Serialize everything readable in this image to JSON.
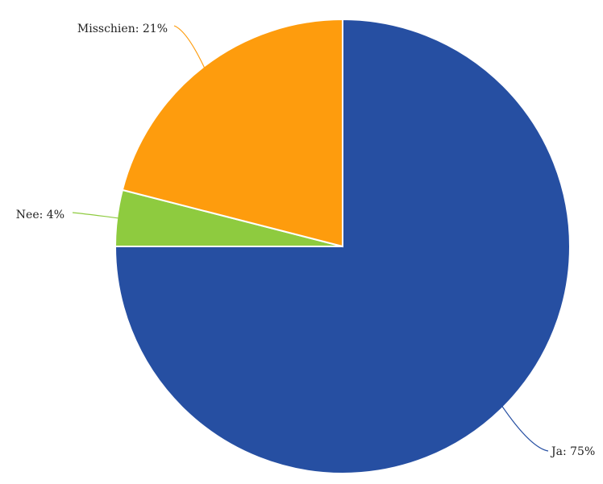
{
  "chart_data": {
    "type": "pie",
    "title": "",
    "start_angle_deg": 0,
    "direction": "clockwise",
    "slices": [
      {
        "label": "Ja",
        "value": 75,
        "label_text": "Ja: 75%",
        "color": "#264fa2"
      },
      {
        "label": "Nee",
        "value": 4,
        "label_text": "Nee: 4%",
        "color": "#8ecb3f"
      },
      {
        "label": "Misschien",
        "value": 21,
        "label_text": "Misschien: 21%",
        "color": "#fe9c0d"
      }
    ]
  }
}
